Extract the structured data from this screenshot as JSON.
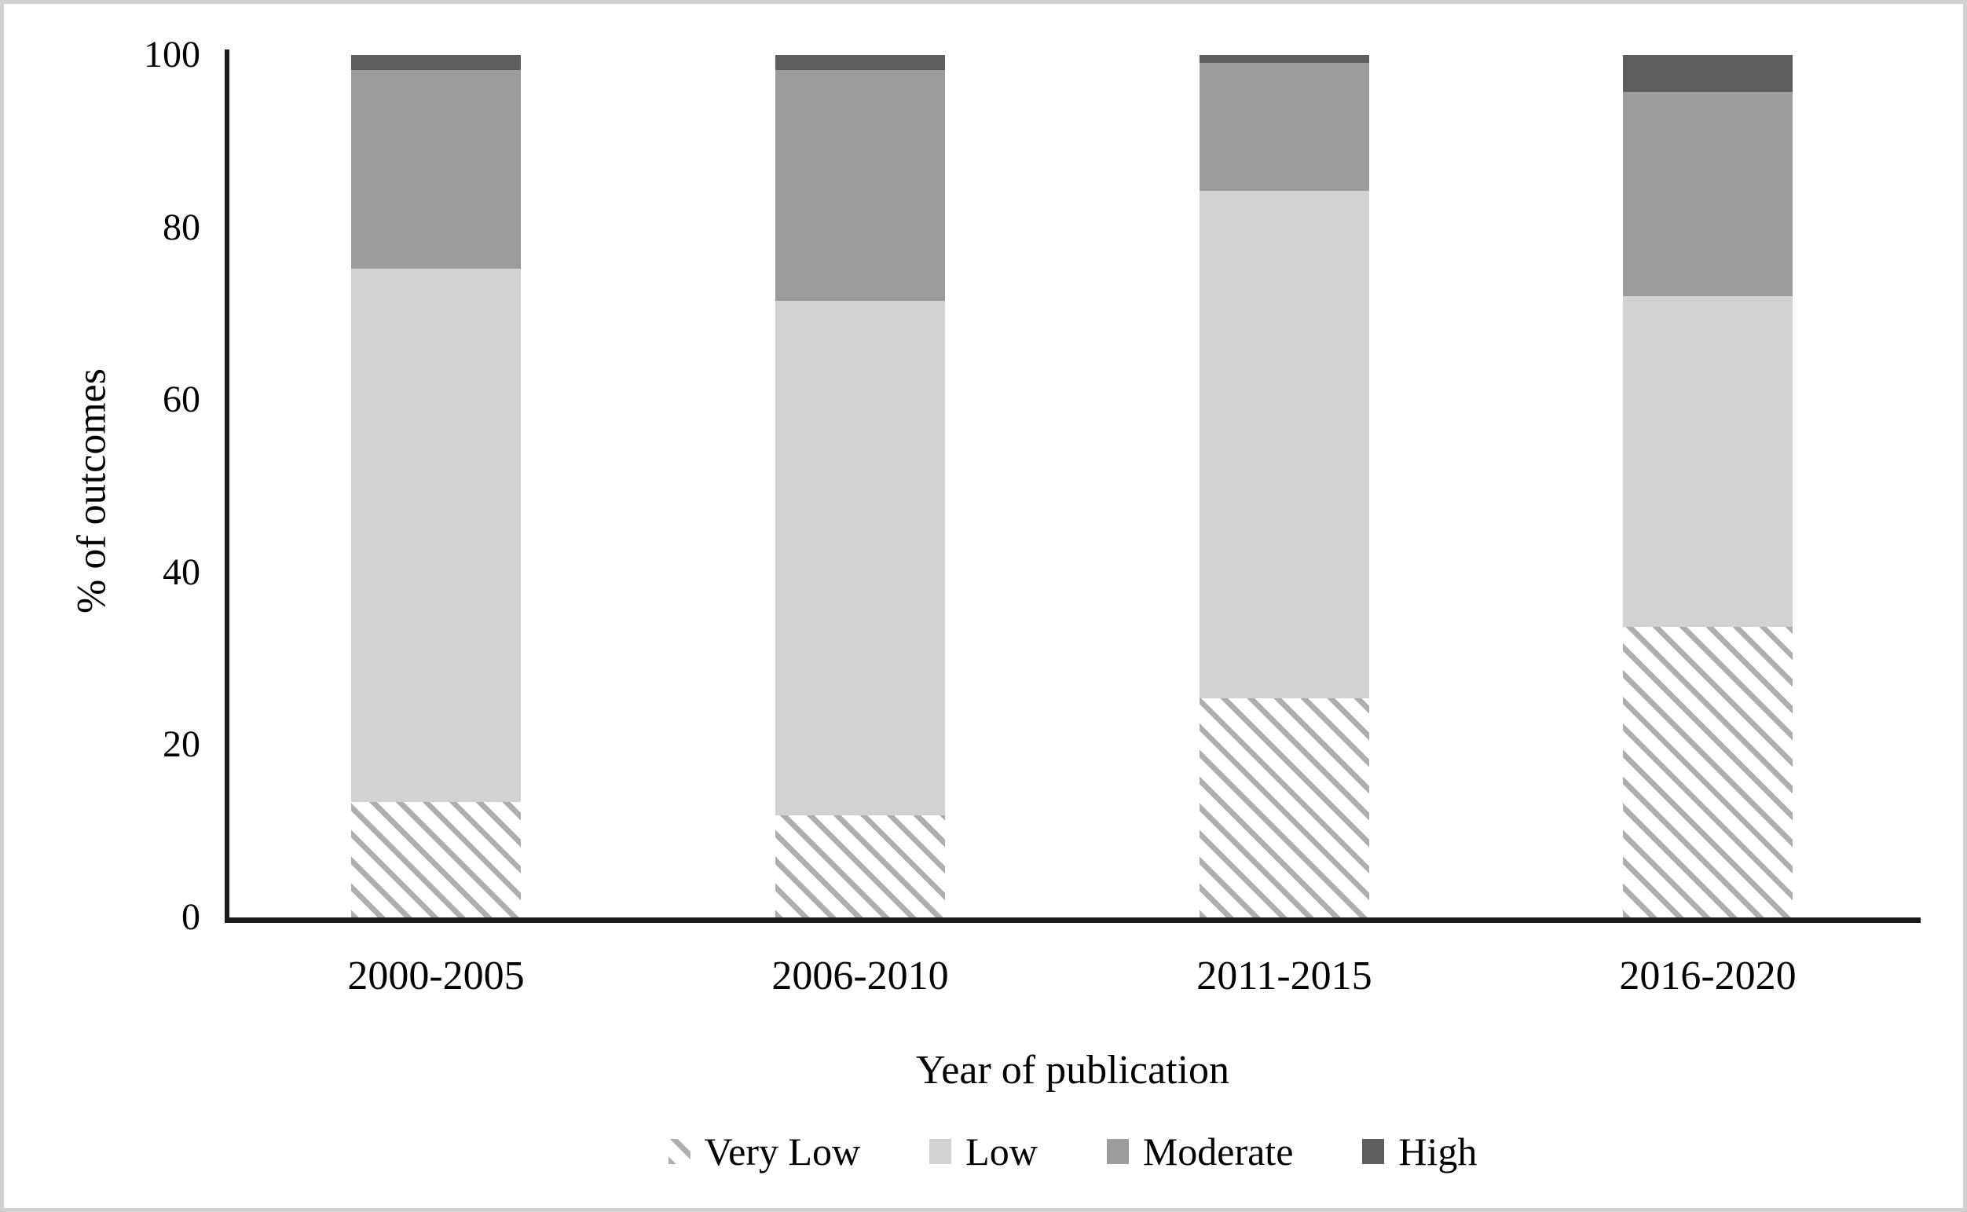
{
  "figure": {
    "kind": "stacked-bar-chart-screenshot",
    "background_color": "#ffffff",
    "frame_border_color": "#d0d0d0"
  },
  "y_axis": {
    "title": "% of outcomes",
    "tick_labels": [
      "0",
      "20",
      "40",
      "60",
      "80",
      "100"
    ],
    "range": [
      0,
      100
    ]
  },
  "x_axis": {
    "title": "Year of publication",
    "categories": [
      "2000-2005",
      "2006-2010",
      "2011-2015",
      "2016-2020"
    ]
  },
  "legend": {
    "items": [
      {
        "label": "Very Low",
        "pattern": "diagonal-hatch",
        "color": "#aeaeae"
      },
      {
        "label": "Low",
        "pattern": "solid",
        "color": "#d2d2d2"
      },
      {
        "label": "Moderate",
        "pattern": "solid",
        "color": "#9c9c9c"
      },
      {
        "label": "High",
        "pattern": "solid",
        "color": "#5e5e5e"
      }
    ]
  },
  "colors": {
    "very_low_hatch_stripe": "#aeaeae",
    "very_low_background": "#ffffff",
    "low": "#d2d2d2",
    "moderate": "#9c9c9c",
    "high": "#5e5e5e",
    "axis": "#1a1a1a",
    "text": "#000000"
  },
  "chart_data": {
    "type": "bar",
    "stacked": true,
    "unit": "percent",
    "title": "",
    "xlabel": "Year of publication",
    "ylabel": "% of outcomes",
    "ylim": [
      0,
      100
    ],
    "grid": false,
    "legend_position": "bottom",
    "categories": [
      "2000-2005",
      "2006-2010",
      "2011-2015",
      "2016-2020"
    ],
    "series": [
      {
        "name": "Very Low",
        "pattern": "diagonal-hatch",
        "color": "#aeaeae",
        "values": [
          13.4,
          11.8,
          25.4,
          33.7
        ]
      },
      {
        "name": "Low",
        "pattern": "solid",
        "color": "#d2d2d2",
        "values": [
          61.8,
          59.7,
          58.8,
          38.3
        ]
      },
      {
        "name": "Moderate",
        "pattern": "solid",
        "color": "#9c9c9c",
        "values": [
          23.1,
          26.8,
          14.9,
          23.7
        ]
      },
      {
        "name": "High",
        "pattern": "solid",
        "color": "#5e5e5e",
        "values": [
          1.7,
          1.7,
          0.9,
          4.3
        ]
      }
    ]
  }
}
